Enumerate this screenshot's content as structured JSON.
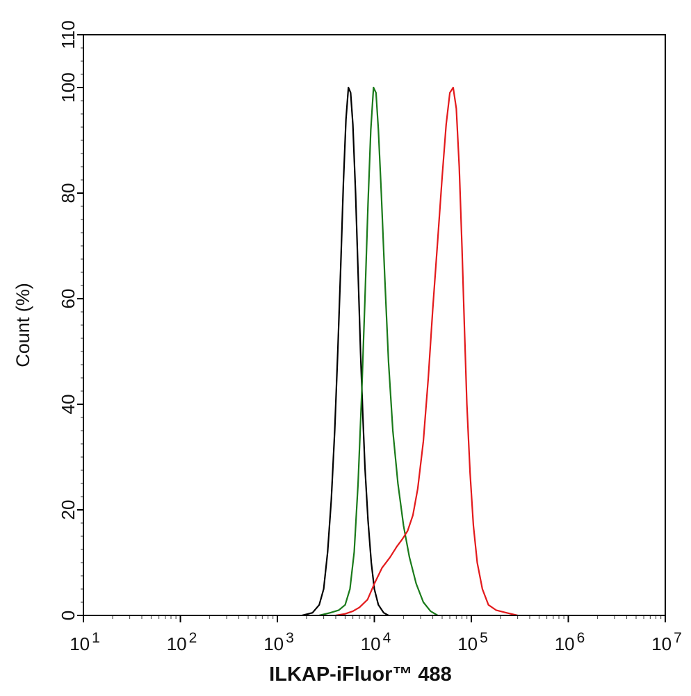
{
  "chart_data": {
    "type": "line",
    "title": "",
    "xlabel": "ILKAP-iFluor™ 488",
    "ylabel": "Count  (%)",
    "x_scale": "log10",
    "xlim": [
      10,
      10000000
    ],
    "ylim": [
      0,
      110
    ],
    "x_ticks": [
      {
        "base": "10",
        "exp": "1"
      },
      {
        "base": "10",
        "exp": "2"
      },
      {
        "base": "10",
        "exp": "3"
      },
      {
        "base": "10",
        "exp": "4"
      },
      {
        "base": "10",
        "exp": "5"
      },
      {
        "base": "10",
        "exp": "6"
      },
      {
        "base": "10",
        "exp": "7"
      }
    ],
    "y_ticks": [
      "0",
      "20",
      "40",
      "60",
      "80",
      "100",
      "110"
    ],
    "grid": false,
    "legend": "none",
    "series": [
      {
        "color": "#000000",
        "points": [
          [
            1800,
            0
          ],
          [
            2300,
            0.5
          ],
          [
            2700,
            2
          ],
          [
            3000,
            5
          ],
          [
            3300,
            12
          ],
          [
            3600,
            22
          ],
          [
            3900,
            35
          ],
          [
            4200,
            50
          ],
          [
            4500,
            66
          ],
          [
            4800,
            82
          ],
          [
            5100,
            94
          ],
          [
            5400,
            100
          ],
          [
            5700,
            99
          ],
          [
            6000,
            93
          ],
          [
            6400,
            80
          ],
          [
            6800,
            65
          ],
          [
            7200,
            50
          ],
          [
            7600,
            38
          ],
          [
            8000,
            28
          ],
          [
            8600,
            18
          ],
          [
            9300,
            10
          ],
          [
            10000,
            5
          ],
          [
            11000,
            2
          ],
          [
            12500,
            0.5
          ],
          [
            14000,
            0
          ]
        ]
      },
      {
        "color": "#1a7a1a",
        "points": [
          [
            2700,
            0
          ],
          [
            3500,
            0.5
          ],
          [
            4300,
            1
          ],
          [
            5000,
            2
          ],
          [
            5600,
            5
          ],
          [
            6200,
            12
          ],
          [
            6800,
            25
          ],
          [
            7400,
            42
          ],
          [
            8000,
            60
          ],
          [
            8600,
            78
          ],
          [
            9200,
            92
          ],
          [
            9800,
            100
          ],
          [
            10400,
            99
          ],
          [
            11000,
            92
          ],
          [
            11800,
            80
          ],
          [
            12800,
            64
          ],
          [
            14000,
            48
          ],
          [
            15500,
            35
          ],
          [
            17500,
            25
          ],
          [
            20000,
            17
          ],
          [
            23000,
            11
          ],
          [
            27000,
            6
          ],
          [
            32000,
            2.5
          ],
          [
            38000,
            0.8
          ],
          [
            45000,
            0
          ]
        ]
      },
      {
        "color": "#e31a1c",
        "points": [
          [
            4000,
            0
          ],
          [
            5000,
            0.3
          ],
          [
            6000,
            0.8
          ],
          [
            7000,
            1.5
          ],
          [
            8500,
            3
          ],
          [
            10000,
            6
          ],
          [
            12000,
            9
          ],
          [
            14500,
            11
          ],
          [
            17000,
            13
          ],
          [
            19500,
            14.5
          ],
          [
            22000,
            16
          ],
          [
            25000,
            19
          ],
          [
            28000,
            24
          ],
          [
            32000,
            33
          ],
          [
            36000,
            45
          ],
          [
            40000,
            58
          ],
          [
            45000,
            71
          ],
          [
            50000,
            83
          ],
          [
            55000,
            93
          ],
          [
            60000,
            99
          ],
          [
            65000,
            100
          ],
          [
            70000,
            96
          ],
          [
            75000,
            85
          ],
          [
            80000,
            70
          ],
          [
            85000,
            54
          ],
          [
            90000,
            40
          ],
          [
            97000,
            27
          ],
          [
            105000,
            17
          ],
          [
            115000,
            10
          ],
          [
            130000,
            5
          ],
          [
            150000,
            2
          ],
          [
            180000,
            1
          ],
          [
            230000,
            0.5
          ],
          [
            300000,
            0
          ]
        ]
      }
    ]
  }
}
